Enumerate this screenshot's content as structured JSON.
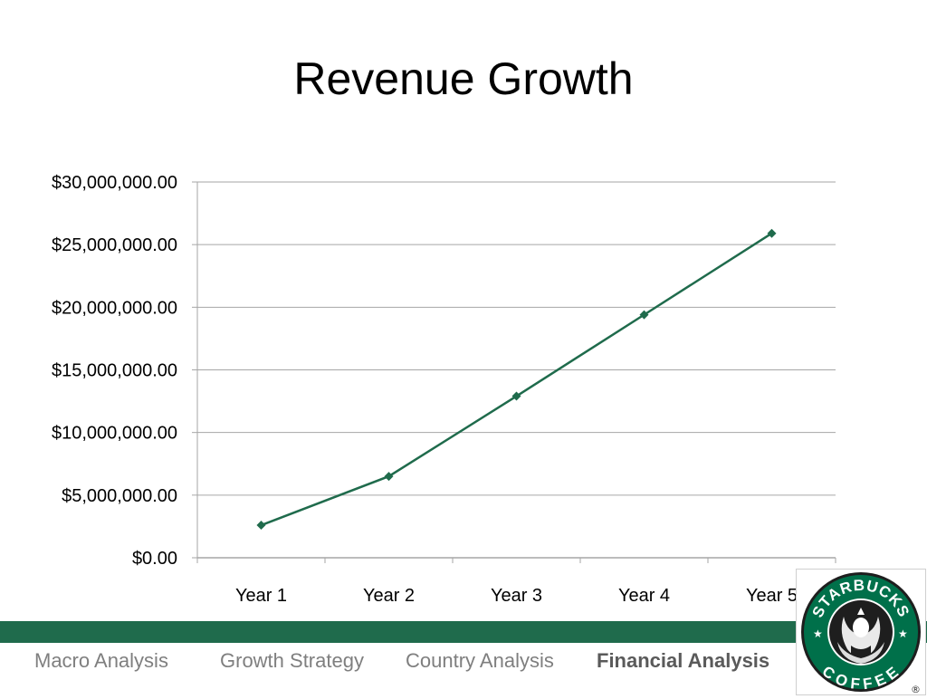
{
  "slide": {
    "title": "Revenue Growth"
  },
  "colors": {
    "series": "#1f6b4c",
    "band": "#1f6b4c",
    "grid": "#a6a6a6",
    "logo_green": "#00704a"
  },
  "chart_data": {
    "type": "line",
    "title": "",
    "xlabel": "",
    "ylabel": "",
    "categories": [
      "Year 1",
      "Year 2",
      "Year 3",
      "Year 4",
      "Year 5"
    ],
    "series": [
      {
        "values": [
          2600000,
          6500000,
          12900000,
          19400000,
          25900000
        ]
      }
    ],
    "ylim": [
      0,
      30000000
    ],
    "yticks": [
      0,
      5000000,
      10000000,
      15000000,
      20000000,
      25000000,
      30000000
    ],
    "ytick_labels": [
      "$0.00",
      "$5,000,000.00",
      "$10,000,000.00",
      "$15,000,000.00",
      "$20,000,000.00",
      "$25,000,000.00",
      "$30,000,000.00"
    ],
    "grid": true,
    "legend": "none",
    "marker": "diamond"
  },
  "nav": {
    "items": [
      "Macro Analysis",
      "Growth Strategy",
      "Country Analysis",
      "Financial Analysis"
    ],
    "active_index": 3
  },
  "logo": {
    "text_top": "STARBUCKS",
    "text_bottom": "COFFEE",
    "mark": "®",
    "icon": "siren-logo"
  }
}
